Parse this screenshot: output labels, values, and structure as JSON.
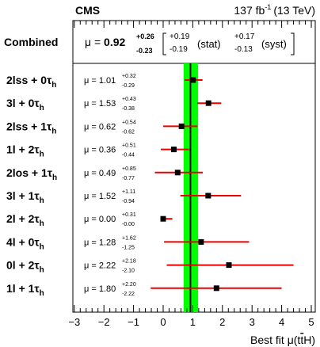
{
  "header": {
    "experiment": "CMS",
    "luminosity": "137 fb",
    "luminosity_exp": "-1",
    "energy": "(13 TeV)"
  },
  "combined": {
    "label": "Combined",
    "mu_prefix": "μ =",
    "mu_value": "0.92",
    "tot_up": "+0.26",
    "tot_down": "-0.23",
    "stat_up": "+0.19",
    "stat_down": "-0.19",
    "stat_label": "(stat)",
    "syst_up": "+0.17",
    "syst_down": "-0.13",
    "syst_label": "(syst)"
  },
  "x_axis": {
    "label_main": "Best fit μ(t",
    "label_tail": "H)",
    "ticks": [
      "−3",
      "−2",
      "−1",
      "0",
      "1",
      "2",
      "3",
      "4",
      "5"
    ]
  },
  "chart_data": {
    "type": "scatter",
    "title": "",
    "xlabel": "Best fit μ(tt̄H)",
    "ylabel": "",
    "xlim": [
      -3.2,
      5.2
    ],
    "grid": false,
    "combined": {
      "value": 0.92,
      "err_up": 0.26,
      "err_down": 0.23,
      "band_color": "#00ff00",
      "line_color": "#000000"
    },
    "channels": [
      {
        "label_main": "2lss + 0τ",
        "label_sub": "h",
        "mu_text": "μ = 1.01",
        "up_text": "+0.32",
        "down_text": "-0.29",
        "value": 1.01,
        "err_up": 0.32,
        "err_down": 0.29
      },
      {
        "label_main": "3l + 0τ",
        "label_sub": "h",
        "mu_text": "μ = 1.53",
        "up_text": "+0.43",
        "down_text": "-0.38",
        "value": 1.53,
        "err_up": 0.43,
        "err_down": 0.38
      },
      {
        "label_main": "2lss + 1τ",
        "label_sub": "h",
        "mu_text": "μ = 0.62",
        "up_text": "+0.54",
        "down_text": "-0.62",
        "value": 0.62,
        "err_up": 0.54,
        "err_down": 0.62
      },
      {
        "label_main": "1l + 2τ",
        "label_sub": "h",
        "mu_text": "μ = 0.36",
        "up_text": "+0.51",
        "down_text": "-0.44",
        "value": 0.36,
        "err_up": 0.51,
        "err_down": 0.44
      },
      {
        "label_main": "2los + 1τ",
        "label_sub": "h",
        "mu_text": "μ = 0.49",
        "up_text": "+0.85",
        "down_text": "-0.77",
        "value": 0.49,
        "err_up": 0.85,
        "err_down": 0.77
      },
      {
        "label_main": "3l + 1τ",
        "label_sub": "h",
        "mu_text": "μ = 1.52",
        "up_text": "+1.11",
        "down_text": "-0.94",
        "value": 1.52,
        "err_up": 1.11,
        "err_down": 0.94
      },
      {
        "label_main": "2l + 2τ",
        "label_sub": "h",
        "mu_text": "μ = 0.00",
        "up_text": "+0.31",
        "down_text": "-0.00",
        "value": 0.0,
        "err_up": 0.31,
        "err_down": 0.0
      },
      {
        "label_main": "4l + 0τ",
        "label_sub": "h",
        "mu_text": "μ = 1.28",
        "up_text": "+1.62",
        "down_text": "-1.25",
        "value": 1.28,
        "err_up": 1.62,
        "err_down": 1.25
      },
      {
        "label_main": "0l + 2τ",
        "label_sub": "h",
        "mu_text": "μ = 2.22",
        "up_text": "+2.18",
        "down_text": "-2.10",
        "value": 2.22,
        "err_up": 2.18,
        "err_down": 2.1
      },
      {
        "label_main": "1l + 1τ",
        "label_sub": "h",
        "mu_text": "μ = 1.80",
        "up_text": "+2.20",
        "down_text": "-2.22",
        "value": 1.8,
        "err_up": 2.2,
        "err_down": 2.22
      }
    ],
    "error_bar_color": "#ee0000",
    "marker_color": "#000000"
  }
}
